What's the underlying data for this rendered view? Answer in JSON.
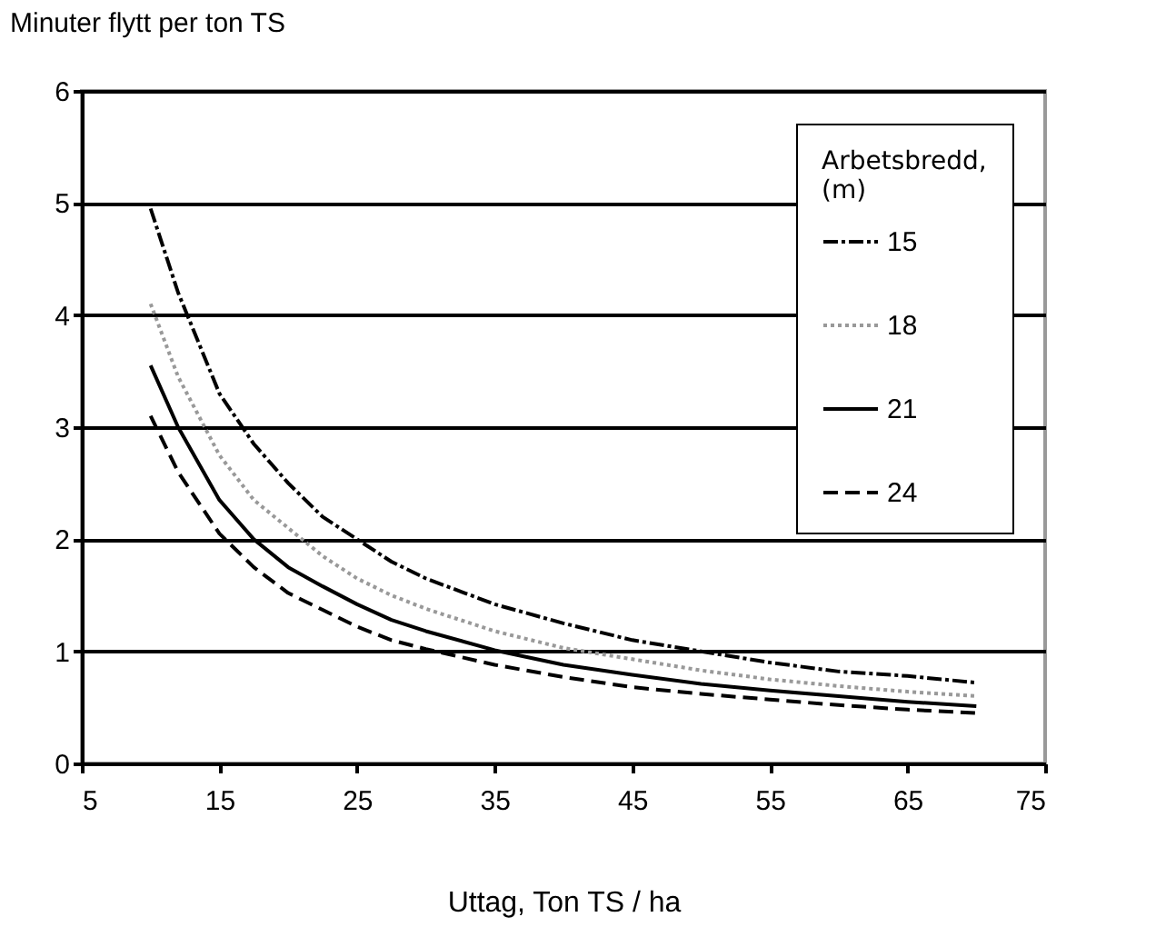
{
  "chart_data": {
    "type": "line",
    "ylabel": "Minuter flytt per ton TS",
    "xlabel": "Uttag, Ton TS / ha",
    "legend_title": "Arbetsbredd, (m)",
    "legend": "top right",
    "grid": "y",
    "marker": "none",
    "x": [
      10,
      12,
      15,
      17.5,
      20,
      22.5,
      25,
      27.5,
      30,
      35,
      40,
      45,
      50,
      55,
      60,
      65,
      70
    ],
    "xlim": [
      5,
      75
    ],
    "xticks": [
      5,
      15,
      25,
      35,
      45,
      55,
      65,
      75
    ],
    "ylim": [
      0,
      6
    ],
    "yticks": [
      0,
      1,
      2,
      3,
      4,
      5,
      6
    ],
    "series": [
      {
        "name": "15",
        "color": "#000000",
        "line_style": "dashdot",
        "values": [
          4.95,
          4.2,
          3.3,
          2.85,
          2.5,
          2.2,
          2.0,
          1.8,
          1.65,
          1.42,
          1.25,
          1.1,
          1.0,
          0.9,
          0.82,
          0.78,
          0.72
        ]
      },
      {
        "name": "18",
        "color": "#999999",
        "line_style": "dotted",
        "values": [
          4.1,
          3.45,
          2.75,
          2.35,
          2.1,
          1.85,
          1.65,
          1.5,
          1.38,
          1.18,
          1.03,
          0.93,
          0.83,
          0.75,
          0.69,
          0.64,
          0.6
        ]
      },
      {
        "name": "21",
        "color": "#000000",
        "line_style": "solid",
        "values": [
          3.55,
          3.0,
          2.35,
          2.0,
          1.75,
          1.58,
          1.42,
          1.28,
          1.18,
          1.01,
          0.88,
          0.79,
          0.71,
          0.65,
          0.6,
          0.55,
          0.51
        ]
      },
      {
        "name": "24",
        "color": "#000000",
        "line_style": "dashed",
        "values": [
          3.1,
          2.6,
          2.05,
          1.75,
          1.52,
          1.37,
          1.22,
          1.1,
          1.02,
          0.88,
          0.77,
          0.68,
          0.62,
          0.57,
          0.52,
          0.48,
          0.45
        ]
      }
    ]
  }
}
